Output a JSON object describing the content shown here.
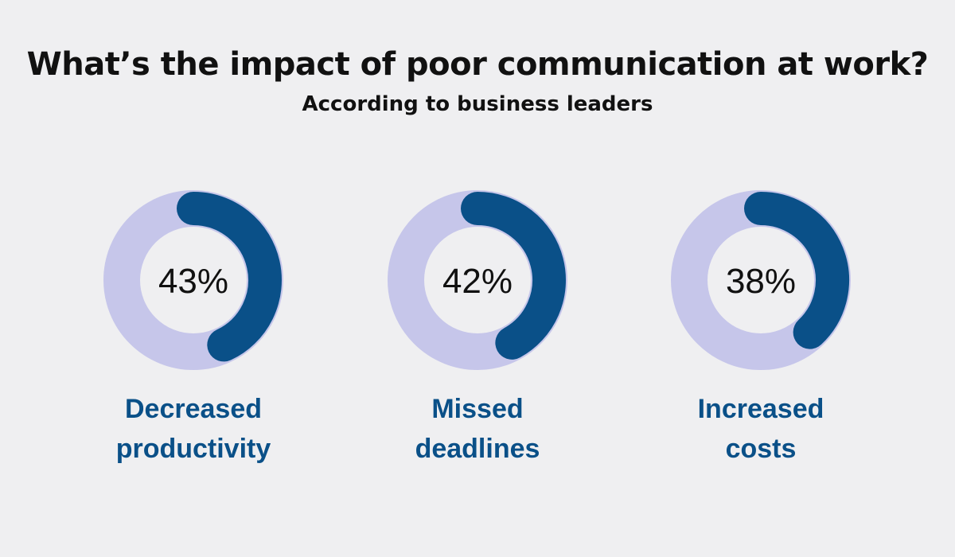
{
  "chart_data": {
    "type": "pie",
    "title": "What’s the impact of poor communication at work?",
    "subtitle": "According to business leaders",
    "colors": {
      "filled": "#0a5088",
      "remaining": "#c6c6ea",
      "label": "#0a5088"
    },
    "items": [
      {
        "value": 43,
        "value_label": "43%",
        "label_line1": "Decreased",
        "label_line2": "productivity"
      },
      {
        "value": 42,
        "value_label": "42%",
        "label_line1": "Missed",
        "label_line2": "deadlines"
      },
      {
        "value": 38,
        "value_label": "38%",
        "label_line1": "Increased",
        "label_line2": "costs"
      }
    ]
  }
}
